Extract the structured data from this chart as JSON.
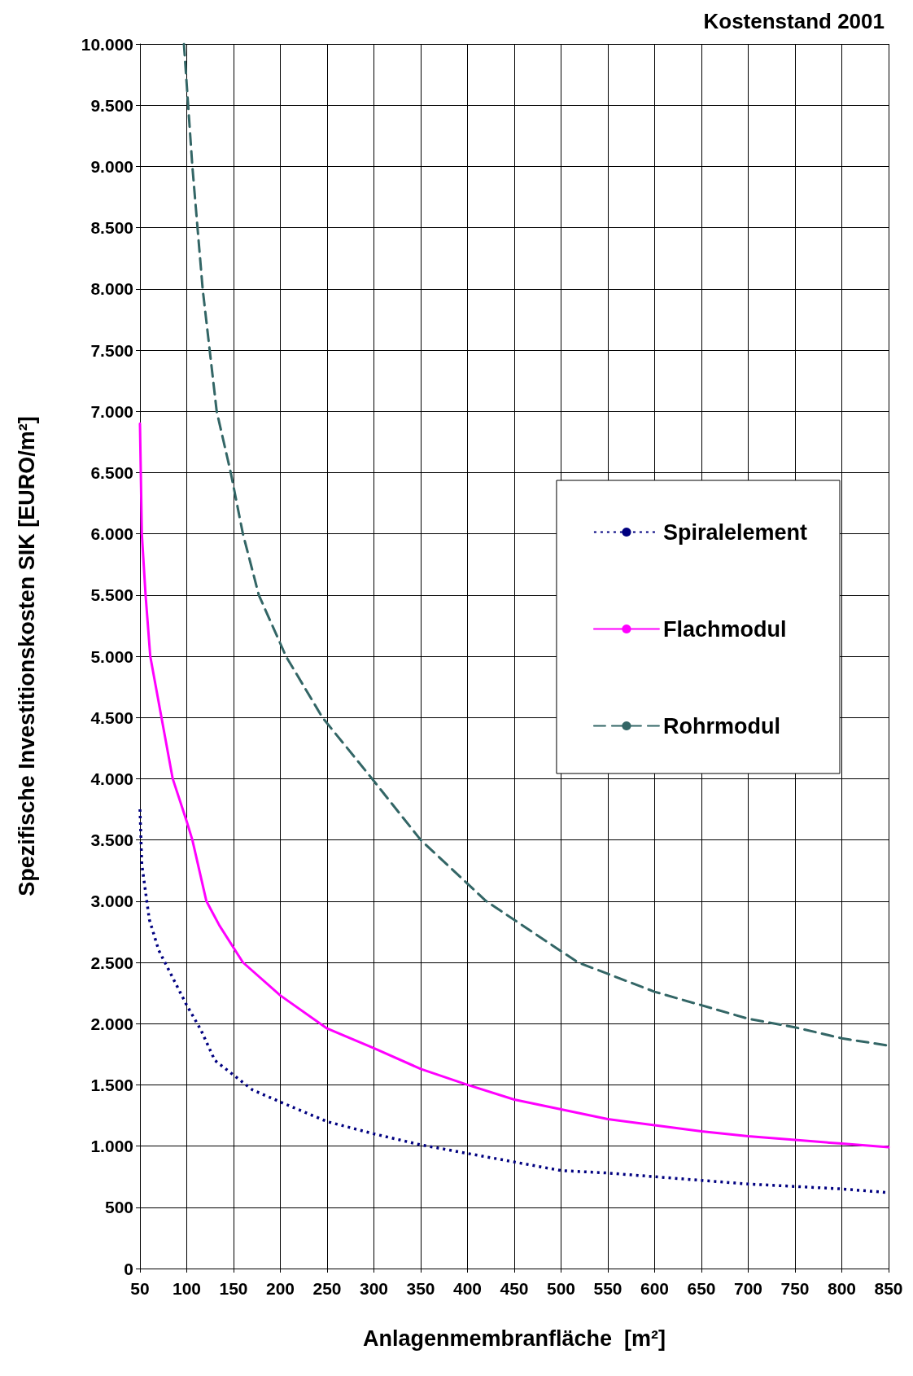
{
  "chart_data": {
    "type": "line",
    "title": "Kostenstand 2001",
    "xlabel": "Anlagenmembranfläche  [m²]",
    "ylabel": "Spezifische Investitionskosten SIK [EURO/m²]",
    "xlim": [
      50,
      850
    ],
    "xticks": [
      50,
      100,
      150,
      200,
      250,
      300,
      350,
      400,
      450,
      500,
      550,
      600,
      650,
      700,
      750,
      800,
      850
    ],
    "ylim": [
      0,
      10000
    ],
    "yticks": [
      0,
      500,
      {
        "value": 1000,
        "label": "1.000"
      },
      {
        "value": 1500,
        "label": "1.500"
      },
      {
        "value": 2000,
        "label": "2.000"
      },
      {
        "value": 2500,
        "label": "2.500"
      },
      {
        "value": 3000,
        "label": "3.000"
      },
      {
        "value": 3500,
        "label": "3.500"
      },
      {
        "value": 4000,
        "label": "4.000"
      },
      {
        "value": 4500,
        "label": "4.500"
      },
      {
        "value": 5000,
        "label": "5.000"
      },
      {
        "value": 5500,
        "label": "5.500"
      },
      {
        "value": 6000,
        "label": "6.000"
      },
      {
        "value": 6500,
        "label": "6.500"
      },
      {
        "value": 7000,
        "label": "7.000"
      },
      {
        "value": 7500,
        "label": "7.500"
      },
      {
        "value": 8000,
        "label": "8.000"
      },
      {
        "value": 8500,
        "label": "8.500"
      },
      {
        "value": 9000,
        "label": "9.000"
      },
      {
        "value": 9500,
        "label": "9.500"
      },
      {
        "value": 10000,
        "label": "10.000"
      }
    ],
    "grid": true,
    "legend": "right",
    "marker": "none",
    "series": [
      {
        "name": "Spiralelement",
        "color": "#000080",
        "line_style": "dotted",
        "x": [
          50,
          52,
          60,
          70,
          80,
          90,
          100,
          115,
          130,
          150,
          170,
          200,
          250,
          300,
          350,
          400,
          450,
          500,
          550,
          600,
          650,
          700,
          750,
          800,
          850
        ],
        "values": [
          3750,
          3300,
          2850,
          2600,
          2450,
          2300,
          2150,
          1950,
          1700,
          1580,
          1460,
          1360,
          1200,
          1100,
          1010,
          940,
          870,
          800,
          780,
          750,
          720,
          690,
          670,
          650,
          620
        ]
      },
      {
        "name": "Flachmodul",
        "color": "#ff00ff",
        "line_style": "solid",
        "x": [
          50,
          52,
          56,
          61,
          73,
          85,
          100,
          106,
          121,
          135,
          160,
          200,
          250,
          300,
          350,
          400,
          450,
          500,
          550,
          600,
          650,
          700,
          750,
          800,
          850
        ],
        "values": [
          6900,
          6000,
          5500,
          5000,
          4500,
          4000,
          3650,
          3500,
          3000,
          2800,
          2500,
          2230,
          1960,
          1800,
          1630,
          1500,
          1380,
          1300,
          1220,
          1170,
          1120,
          1080,
          1050,
          1020,
          990
        ]
      },
      {
        "name": "Rohrmodul",
        "color": "#336666",
        "line_style": "dashed",
        "x": [
          97,
          106,
          117,
          132,
          147,
          160,
          177,
          206,
          245,
          298,
          350,
          420,
          518,
          600,
          700,
          750,
          800,
          850
        ],
        "values": [
          10000,
          9000,
          8000,
          7000,
          6500,
          6000,
          5500,
          5000,
          4500,
          4000,
          3500,
          3000,
          2500,
          2260,
          2040,
          1970,
          1880,
          1820
        ]
      }
    ]
  }
}
